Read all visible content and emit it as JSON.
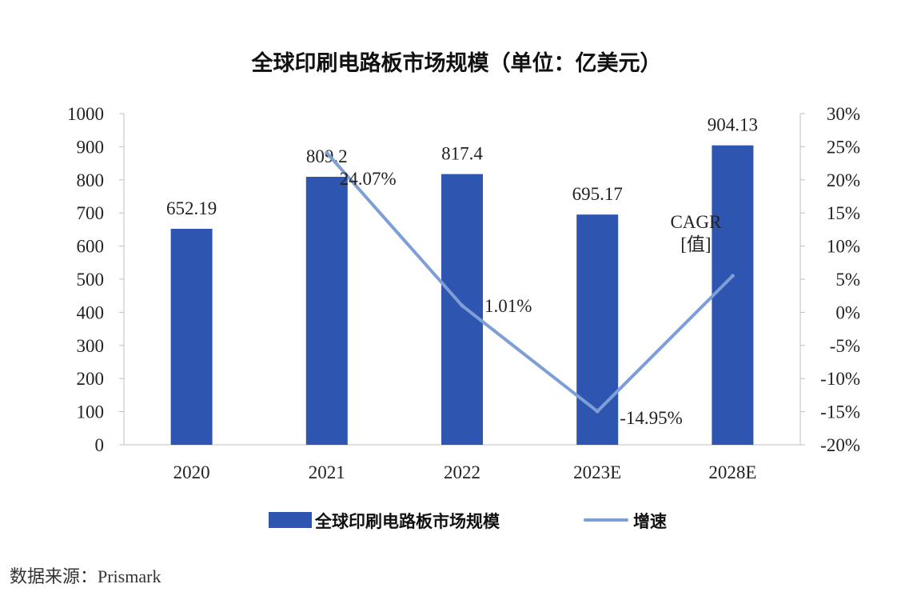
{
  "chart_data": {
    "type": "bar",
    "title": "全球印刷电路板市场规模（单位：亿美元）",
    "categories": [
      "2020",
      "2021",
      "2022",
      "2023E",
      "2028E"
    ],
    "series": [
      {
        "name": "全球印刷电路板市场规模",
        "type": "bar",
        "axis": "left",
        "color": "#2e55b0",
        "values": [
          652.19,
          809.2,
          817.4,
          695.17,
          904.13
        ],
        "labels": [
          "652.19",
          "809.2",
          "817.4",
          "695.17",
          "904.13"
        ]
      },
      {
        "name": "增速",
        "type": "line",
        "axis": "right",
        "color": "#7d9fd6",
        "values": [
          null,
          24.07,
          1.01,
          -14.95,
          5.5
        ],
        "labels": [
          "",
          "24.07%",
          "1.01%",
          "-14.95%",
          "CAGR\n[值]"
        ]
      }
    ],
    "y_left": {
      "min": 0,
      "max": 1000,
      "step": 100,
      "ticks": [
        "0",
        "100",
        "200",
        "300",
        "400",
        "500",
        "600",
        "700",
        "800",
        "900",
        "1000"
      ]
    },
    "y_right": {
      "min": -20,
      "max": 30,
      "step": 5,
      "ticks": [
        "-20%",
        "-15%",
        "-10%",
        "-5%",
        "0%",
        "5%",
        "10%",
        "15%",
        "20%",
        "25%",
        "30%"
      ]
    },
    "xlabel": "",
    "ylabel": "",
    "grid": false,
    "legend": "bottom"
  },
  "source": "数据来源：Prisma­rk"
}
